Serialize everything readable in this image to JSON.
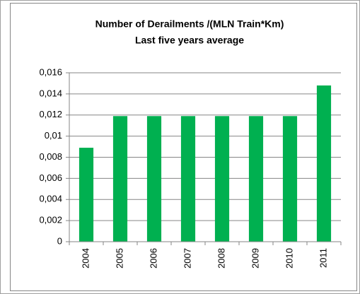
{
  "chart_data": {
    "type": "bar",
    "title": "Number of Derailments /(MLN Train*Km)",
    "subtitle": "Last five years average",
    "categories": [
      "2004",
      "2005",
      "2006",
      "2007",
      "2008",
      "2009",
      "2010",
      "2011"
    ],
    "values": [
      0.0089,
      0.0119,
      0.0119,
      0.0119,
      0.0119,
      0.0119,
      0.0119,
      0.0148
    ],
    "color": "#00b050",
    "ylim": [
      0,
      0.016
    ],
    "yticks": [
      0,
      {
        "value": 0.002,
        "label": "0,002"
      },
      {
        "value": 0.004,
        "label": "0,004"
      },
      {
        "value": 0.006,
        "label": "0,006"
      },
      {
        "value": 0.008,
        "label": "0,008"
      },
      {
        "value": 0.01,
        "label": "0,01"
      },
      {
        "value": 0.012,
        "label": "0,012"
      },
      {
        "value": 0.014,
        "label": "0,014"
      },
      {
        "value": 0.016,
        "label": "0,016"
      }
    ],
    "grid": true
  }
}
